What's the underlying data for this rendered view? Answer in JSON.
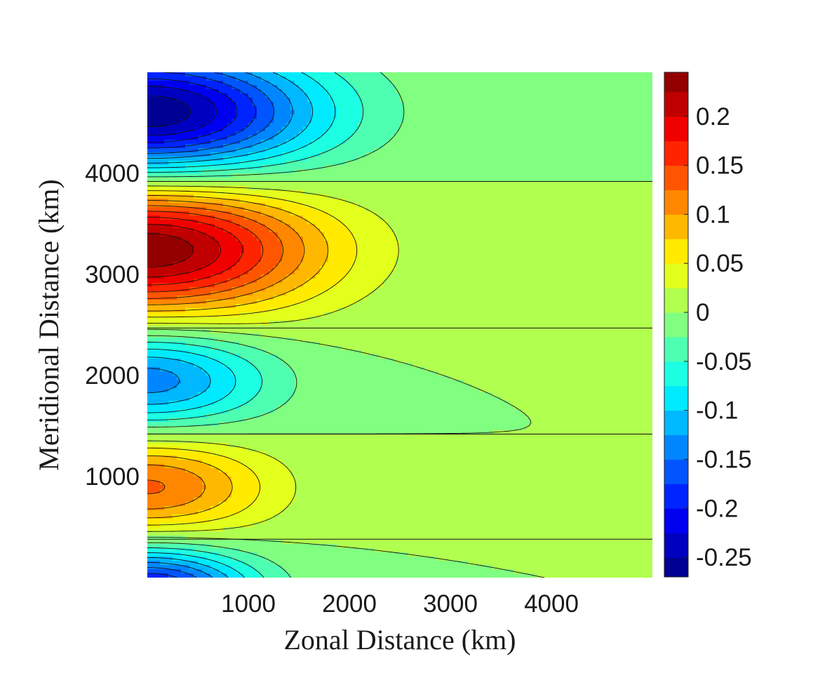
{
  "chart_data": {
    "type": "contourf",
    "xlabel": "Zonal Distance (km)",
    "ylabel": "Meridional Distance (km)",
    "xlim": [
      0,
      5000
    ],
    "ylim": [
      0,
      5000
    ],
    "xticks": [
      1000,
      2000,
      3000,
      4000
    ],
    "xtick_labels": [
      "1000",
      "2000",
      "3000",
      "4000"
    ],
    "yticks": [
      1000,
      2000,
      3000,
      4000
    ],
    "ytick_labels": [
      "1000",
      "2000",
      "3000",
      "4000"
    ],
    "colormap": "jet",
    "colorbar": {
      "range": [
        -0.27,
        0.245
      ],
      "ticks": [
        0.2,
        0.15,
        0.1,
        0.05,
        0,
        -0.05,
        -0.1,
        -0.15,
        -0.2,
        -0.25
      ],
      "tick_labels": [
        "0.2",
        "0.15",
        "0.1",
        "0.05",
        "0",
        "-0.05",
        "-0.1",
        "-0.15",
        "-0.2",
        "-0.25"
      ]
    },
    "contour_levels": [
      -0.25,
      -0.225,
      -0.2,
      -0.175,
      -0.15,
      -0.125,
      -0.1,
      -0.075,
      -0.05,
      -0.025,
      0,
      0.025,
      0.05,
      0.075,
      0.1,
      0.125,
      0.15,
      0.175,
      0.2,
      0.225
    ],
    "field": {
      "description_terms": [
        {
          "amplitude": 0.27,
          "y_center": 4600,
          "y_halfwidth": 700,
          "sign": -1,
          "x_decay": 1650
        },
        {
          "amplitude": 0.245,
          "y_center": 3250,
          "y_halfwidth": 720,
          "sign": 1,
          "x_decay": 1650
        },
        {
          "amplitude": 0.14,
          "y_center": 1960,
          "y_halfwidth": 560,
          "sign": -1,
          "x_decay": 1150
        },
        {
          "amplitude": 0.13,
          "y_center": 900,
          "y_halfwidth": 560,
          "sign": 1,
          "x_decay": 1150
        },
        {
          "amplitude": 0.22,
          "y_center": -150,
          "y_halfwidth": 500,
          "sign": -1,
          "x_decay": 1000
        }
      ],
      "zero_lines_y": [
        3920,
        2470,
        1420,
        380
      ]
    }
  }
}
